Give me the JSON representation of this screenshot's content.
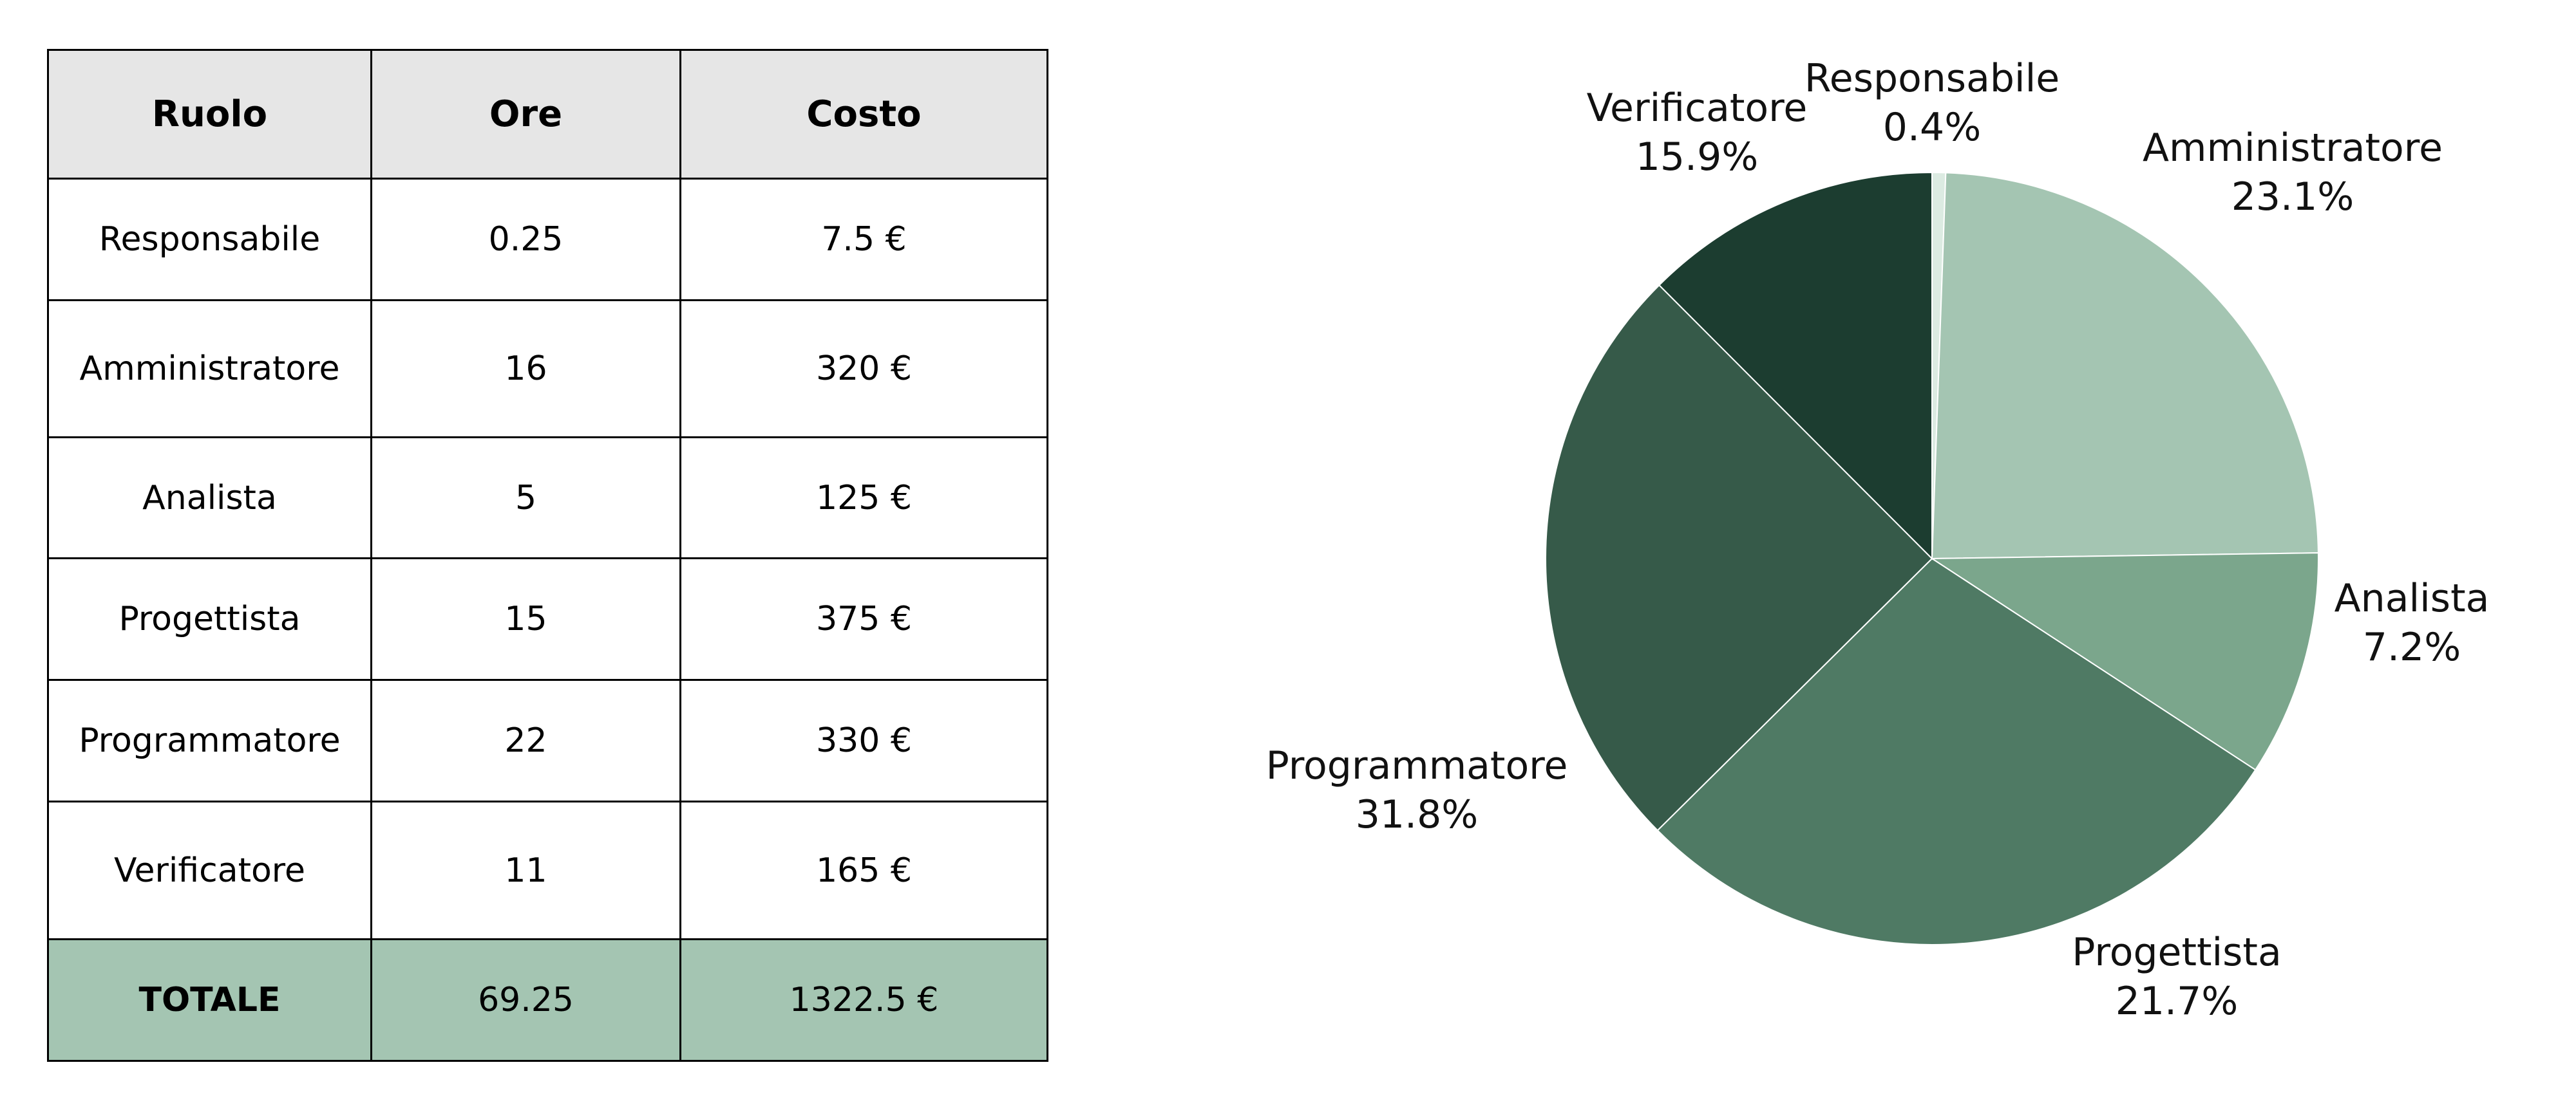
{
  "table": {
    "headers": [
      "Ruolo",
      "Ore",
      "Costo"
    ],
    "rows": [
      [
        "Responsabile",
        "0.25",
        "7.5 €"
      ],
      [
        "Amministratore",
        "16",
        "320 €"
      ],
      [
        "Analista",
        "5",
        "125 €"
      ],
      [
        "Progettista",
        "15",
        "375 €"
      ],
      [
        "Programmatore",
        "22",
        "330 €"
      ],
      [
        "Verificatore",
        "11",
        "165 €"
      ]
    ],
    "total": [
      "TOTALE",
      "69.25",
      "1322.5 €"
    ],
    "colors": {
      "header_bg": "#e6e6e6",
      "total_bg": "#a4c5b2"
    }
  },
  "chart_data": {
    "type": "pie",
    "title": "",
    "start_angle": "12 o'clock",
    "direction": "clockwise",
    "slices": [
      {
        "label": "Responsabile",
        "percent_label": "0.4%",
        "value": 7.5,
        "color": "#dcebe2"
      },
      {
        "label": "Amministratore",
        "percent_label": "23.1%",
        "value": 320,
        "color": "#a4c5b2"
      },
      {
        "label": "Analista",
        "percent_label": "7.2%",
        "value": 125,
        "color": "#7ba68c"
      },
      {
        "label": "Progettista",
        "percent_label": "21.7%",
        "value": 375,
        "color": "#4f7a64"
      },
      {
        "label": "Programmatore",
        "percent_label": "31.8%",
        "value": 330,
        "color": "#365a49"
      },
      {
        "label": "Verificatore",
        "percent_label": "15.9%",
        "value": 165,
        "color": "#1c3d30"
      }
    ]
  }
}
